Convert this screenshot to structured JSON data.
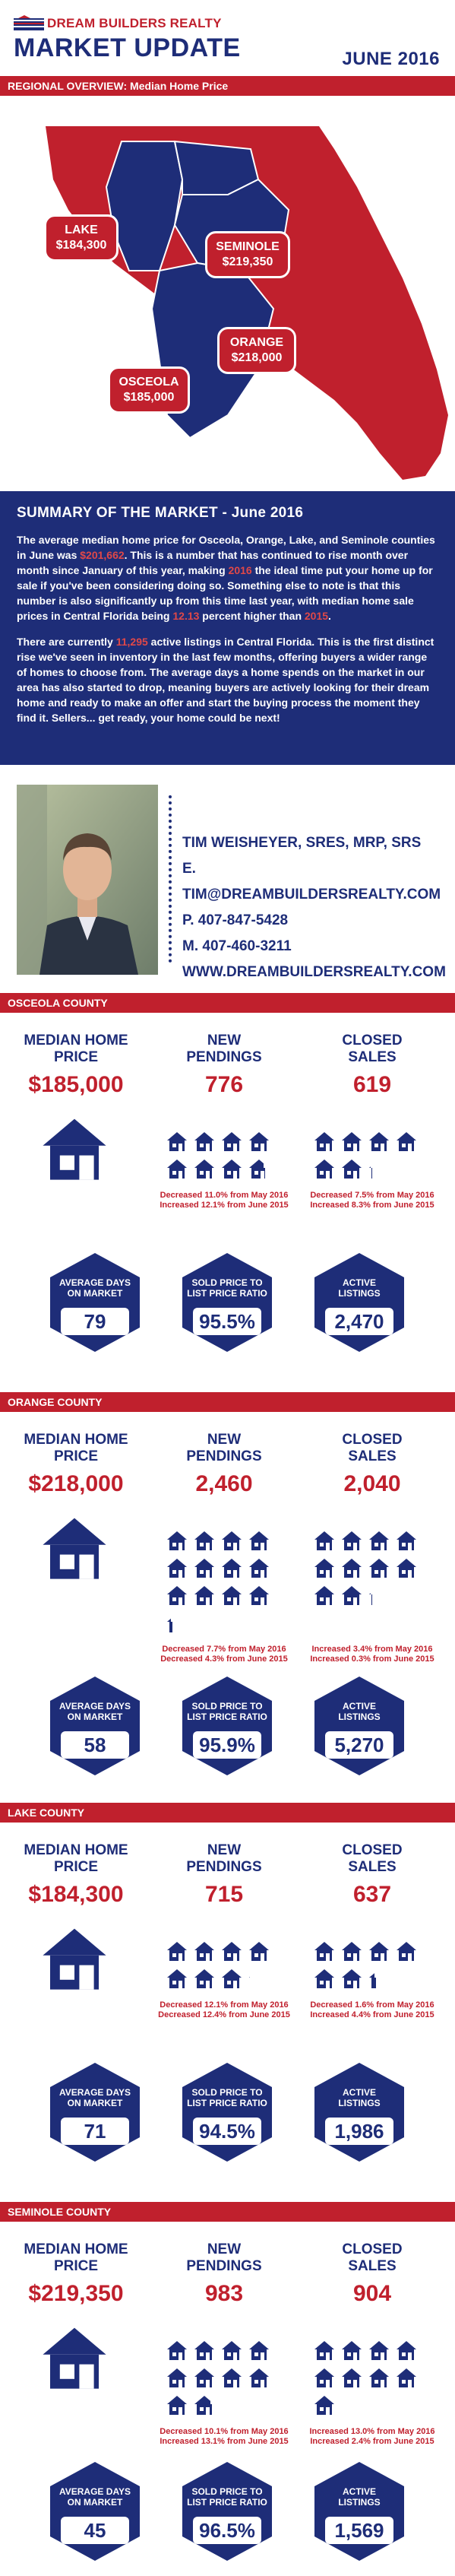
{
  "header": {
    "brand": "DREAM BUILDERS REALTY",
    "title": "MARKET UPDATE",
    "date": "JUNE 2016"
  },
  "regional": {
    "bar_label": "REGIONAL OVERVIEW: Median Home Price",
    "lake": {
      "name": "LAKE",
      "price": "$184,300"
    },
    "seminole": {
      "name": "SEMINOLE",
      "price": "$219,350"
    },
    "orange": {
      "name": "ORANGE",
      "price": "$218,000"
    },
    "osceola": {
      "name": "OSCEOLA",
      "price": "$185,000"
    }
  },
  "summary": {
    "heading": "SUMMARY OF THE MARKET - June 2016",
    "p1_a": "The average median home price for Osceola, Orange, Lake, and Seminole counties in June was ",
    "p1_price": "$201,662",
    "p1_b": ". This is a number that has continued to rise month over month since January of this year, making ",
    "p1_year": "2016",
    "p1_c": " the ideal time put your home up for sale if you've been considering doing so. Something else to note is that this number is also significantly up from this time last year, with median home sale prices in Central Florida being ",
    "p1_pct": "12.13",
    "p1_d": " percent higher than ",
    "p1_year2": "2015",
    "p1_e": ".",
    "p2_a": "There are currently ",
    "p2_count": "11,295",
    "p2_b": " active listings in Central Florida. This is the first distinct rise we've seen in inventory in the last few months, offering buyers a wider range of homes to choose from. The average days a home spends on the market in our area has also started to drop, meaning buyers are actively looking for their dream home and ready to make an offer and start the buying process the moment they find it. Sellers... get ready, your home could be next!"
  },
  "contact": {
    "name": "TIM WEISHEYER, SRES, MRP, SRS",
    "email": "E. TIM@DREAMBUILDERSREALTY.COM",
    "phone": "P. 407-847-5428",
    "mobile": "M. 407-460-3211",
    "web": "WWW.DREAMBUILDERSREALTY.COM"
  },
  "labels": {
    "median_home": "MEDIAN HOME",
    "price": "PRICE",
    "new": "NEW",
    "pendings": "PENDINGS",
    "closed": "CLOSED",
    "sales": "SALES",
    "avg_days_1": "AVERAGE DAYS",
    "avg_days_2": "ON MARKET",
    "ratio_1": "SOLD PRICE TO",
    "ratio_2": "LIST PRICE RATIO",
    "active_1": "ACTIVE",
    "active_2": "LISTINGS"
  },
  "counties": [
    {
      "name": "OSCEOLA COUNTY",
      "median": "$185,000",
      "pendings": "776",
      "closed": "619",
      "pend_houses": 7.76,
      "closed_houses": 6.19,
      "pend_change_1": "Decreased 11.0% from May 2016",
      "pend_change_2": "Increased 12.1% from June 2015",
      "closed_change_1": "Decreased 7.5% from May 2016",
      "closed_change_2": "Increased 8.3% from June 2015",
      "days": "79",
      "ratio": "95.5%",
      "active": "2,470"
    },
    {
      "name": "ORANGE COUNTY",
      "median": "$218,000",
      "pendings": "2,460",
      "closed": "2,040",
      "pend_houses": 12.3,
      "closed_houses": 10.2,
      "pend_change_1": "Decreased 7.7% from May 2016",
      "pend_change_2": "Decreased 4.3% from June 2015",
      "closed_change_1": "Increased 3.4% from May 2016",
      "closed_change_2": "Increased 0.3% from June 2015",
      "days": "58",
      "ratio": "95.9%",
      "active": "5,270"
    },
    {
      "name": "LAKE COUNTY",
      "median": "$184,300",
      "pendings": "715",
      "closed": "637",
      "pend_houses": 7.15,
      "closed_houses": 6.37,
      "pend_change_1": "Decreased 12.1% from May 2016",
      "pend_change_2": "Decreased 12.4% from June 2015",
      "closed_change_1": "Decreased 1.6% from May 2016",
      "closed_change_2": "Increased 4.4% from June 2015",
      "days": "71",
      "ratio": "94.5%",
      "active": "1,986"
    },
    {
      "name": "SEMINOLE COUNTY",
      "median": "$219,350",
      "pendings": "983",
      "closed": "904",
      "pend_houses": 9.83,
      "closed_houses": 9.04,
      "pend_change_1": "Decreased 10.1% from May 2016",
      "pend_change_2": "Increased 13.1% from June 2015",
      "closed_change_1": "Increased 13.0% from May 2016",
      "closed_change_2": "Increased 2.4% from June 2015",
      "days": "45",
      "ratio": "96.5%",
      "active": "1,569"
    }
  ],
  "colors": {
    "navy": "#1e2d78",
    "red": "#c0202d"
  }
}
